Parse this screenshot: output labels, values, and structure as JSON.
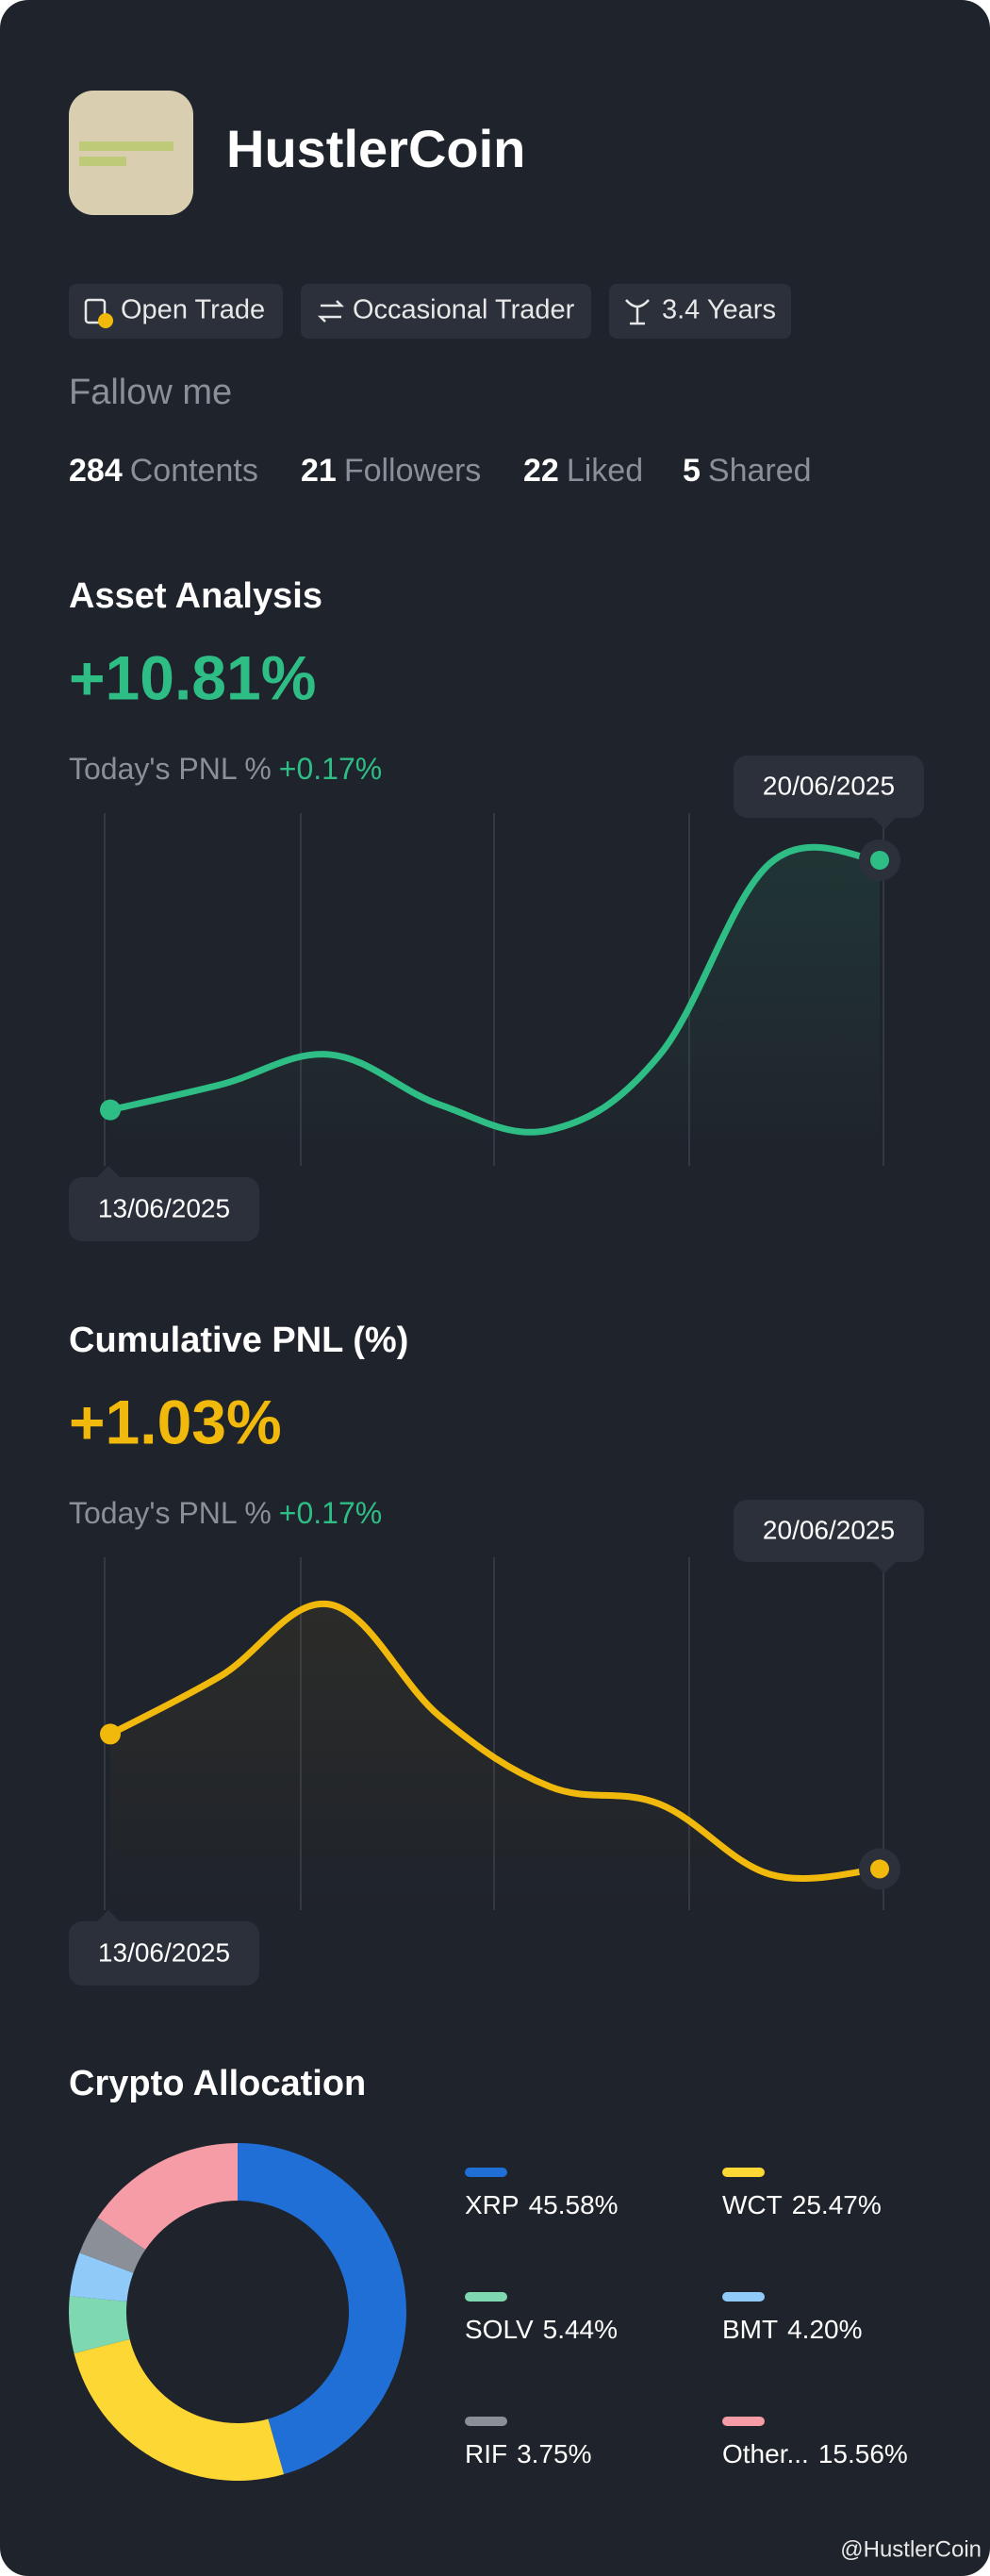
{
  "profile": {
    "name": "HustlerCoin",
    "tags": [
      "Open Trade",
      "Occasional Trader",
      "3.4 Years"
    ],
    "follow": "Fallow me",
    "stats": [
      {
        "count": "284",
        "label": "Contents"
      },
      {
        "count": "21",
        "label": "Followers"
      },
      {
        "count": "22",
        "label": "Liked"
      },
      {
        "count": "5",
        "label": "Shared"
      }
    ],
    "footer": "@HustlerCoin"
  },
  "chart_data": [
    {
      "type": "line",
      "title": "Asset Analysis",
      "headline": "+10.81%",
      "pnl_label": "Today's PNL %",
      "pnl_value": "+0.17%",
      "categories": [
        "13/06/2025",
        null,
        null,
        null,
        null,
        null,
        null,
        "20/06/2025"
      ],
      "values": [
        18.5,
        26,
        35,
        20,
        12.5,
        35,
        92,
        93
      ],
      "color": "#2ebd85"
    },
    {
      "type": "line",
      "title": "Cumulative PNL (%)",
      "headline": "+1.03%",
      "pnl_label": "Today's PNL %",
      "pnl_value": "+0.17%",
      "categories": [
        "13/06/2025",
        null,
        null,
        null,
        null,
        null,
        null,
        "20/06/2025"
      ],
      "values": [
        50,
        66.5,
        87,
        55,
        35,
        30,
        10,
        11.5
      ],
      "color": "#f0b90b"
    },
    {
      "type": "pie",
      "title": "Crypto Allocation",
      "categories": [
        "XRP",
        "WCT",
        "SOLV",
        "BMT",
        "RIF",
        "Other..."
      ],
      "values": [
        45.58,
        25.47,
        5.44,
        4.2,
        3.75,
        15.56
      ],
      "value_labels": [
        "45.58%",
        "25.47%",
        "5.44%",
        "4.20%",
        "3.75%",
        "15.56%"
      ],
      "colors": [
        "#1f6fd6",
        "#fdd835",
        "#7ed8b0",
        "#90caf9",
        "#8a8f98",
        "#f59ca6"
      ]
    }
  ]
}
